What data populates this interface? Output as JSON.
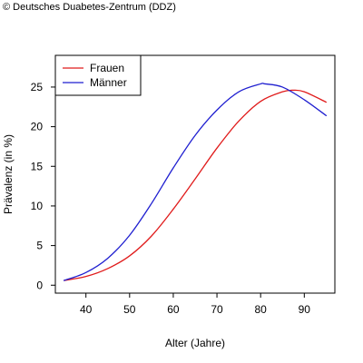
{
  "copyright": "© Deutsches Duabetes-Zentrum (DDZ)",
  "chart_data": {
    "type": "line",
    "title": "",
    "xlabel": "Alter (Jahre)",
    "ylabel": "Prävalenz (in %)",
    "xlim": [
      33,
      97
    ],
    "ylim": [
      -1,
      29
    ],
    "xticks": [
      40,
      50,
      60,
      70,
      80,
      90
    ],
    "yticks": [
      0,
      5,
      10,
      15,
      20,
      25
    ],
    "grid": false,
    "legend_position": "top-left",
    "series": [
      {
        "name": "Frauen",
        "color": "#e01b1b",
        "x": [
          35,
          40,
          45,
          50,
          55,
          60,
          65,
          70,
          75,
          80,
          85,
          87.5,
          90,
          95
        ],
        "y": [
          0.6,
          1.1,
          2.1,
          3.7,
          6.2,
          9.6,
          13.4,
          17.3,
          20.7,
          23.2,
          24.4,
          24.6,
          24.4,
          23.1
        ]
      },
      {
        "name": "Männer",
        "color": "#1f1fd0",
        "x": [
          35,
          40,
          45,
          50,
          55,
          60,
          65,
          70,
          75,
          80,
          81,
          85,
          90,
          95
        ],
        "y": [
          0.6,
          1.6,
          3.4,
          6.3,
          10.3,
          14.8,
          18.9,
          22.1,
          24.4,
          25.4,
          25.4,
          25.0,
          23.4,
          21.4
        ]
      }
    ]
  }
}
